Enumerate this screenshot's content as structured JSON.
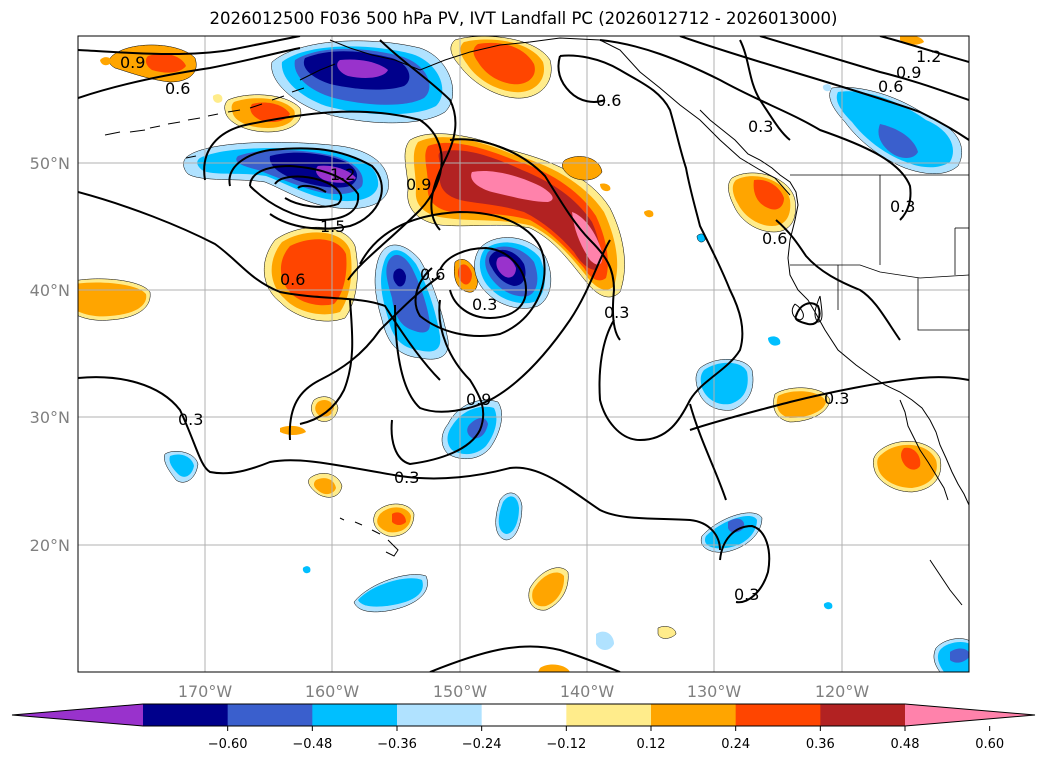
{
  "title": "2026012500 F036 500 hPa PV, IVT Landfall PC (2026012712 - 2026013000)",
  "colors": {
    "neg_extend": "#9932cc",
    "neg": [
      "#00008b",
      "#3a5fcd",
      "#00bfff",
      "#b0e2ff"
    ],
    "neutral": "#ffffff",
    "pos": [
      "#ffec8b",
      "#ffa500",
      "#ff4500",
      "#b22222"
    ],
    "pos_extend": "#ff82ab",
    "contour": "#000000",
    "grid": "#b0b0b0"
  },
  "axes": {
    "lat_labels": [
      "50°N",
      "40°N",
      "30°N",
      "20°N"
    ],
    "lon_labels": [
      "170°W",
      "160°W",
      "150°W",
      "140°W",
      "130°W",
      "120°W"
    ]
  },
  "contour_labels": [
    {
      "text": "0.9"
    },
    {
      "text": "0.6"
    },
    {
      "text": "1.2"
    },
    {
      "text": "1.5"
    },
    {
      "text": "0.6"
    },
    {
      "text": "0.9"
    },
    {
      "text": "0.6"
    },
    {
      "text": "0.3"
    },
    {
      "text": "0.9"
    },
    {
      "text": "0.3"
    },
    {
      "text": "0.3"
    },
    {
      "text": "0.3"
    },
    {
      "text": "0.6"
    },
    {
      "text": "0.6"
    },
    {
      "text": "0.3"
    },
    {
      "text": "0.6"
    },
    {
      "text": "0.9"
    },
    {
      "text": "1.2"
    },
    {
      "text": "0.3"
    },
    {
      "text": "0.3"
    },
    {
      "text": "0.3"
    }
  ],
  "colorbar": {
    "ticks": [
      "−0.60",
      "−0.48",
      "−0.36",
      "−0.24",
      "−0.12",
      "0.12",
      "0.24",
      "0.36",
      "0.48",
      "0.60"
    ]
  }
}
